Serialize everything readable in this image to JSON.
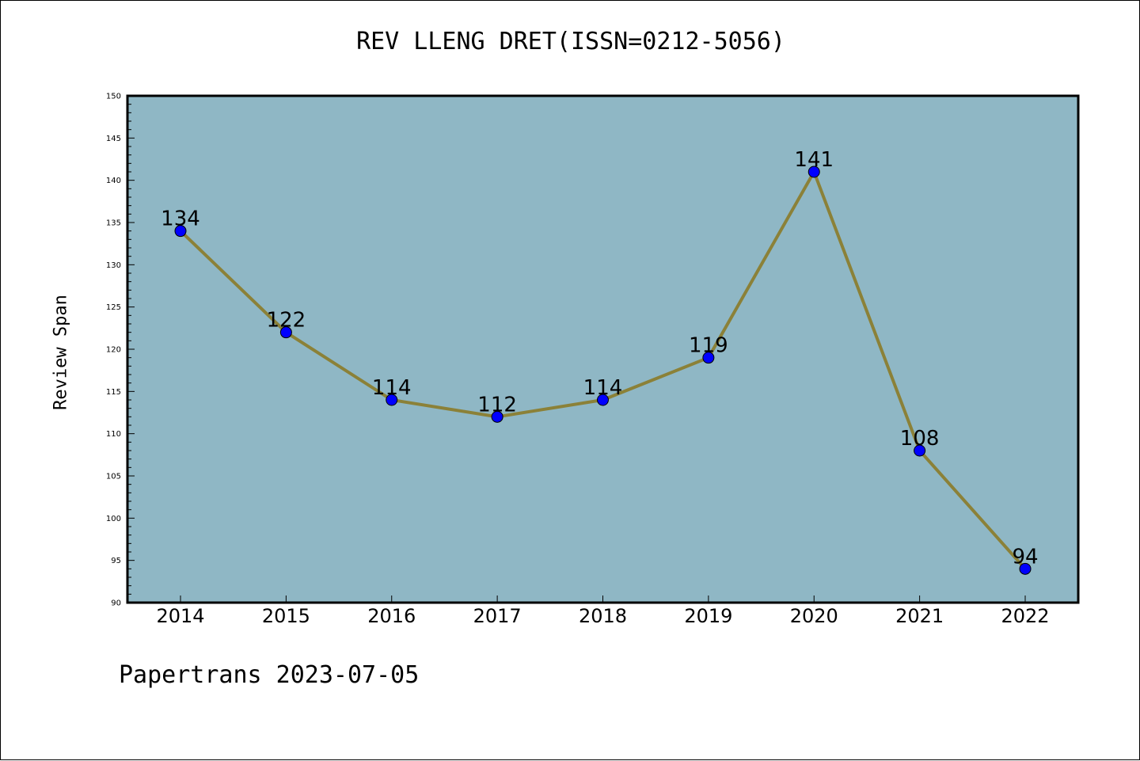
{
  "chart_data": {
    "type": "line",
    "title": "REV LLENG DRET(ISSN=0212-5056)",
    "xlabel": "",
    "ylabel": "Review Span",
    "categories": [
      "2014",
      "2015",
      "2016",
      "2017",
      "2018",
      "2019",
      "2020",
      "2021",
      "2022"
    ],
    "series": [
      {
        "values": [
          134,
          122,
          114,
          112,
          114,
          119,
          141,
          108,
          94
        ]
      }
    ],
    "ylim": [
      90,
      150
    ],
    "yticks": [
      90,
      95,
      100,
      105,
      110,
      115,
      120,
      125,
      130,
      135,
      140,
      145,
      150
    ],
    "grid": false,
    "colors": {
      "plot_background": "#8fb7c5",
      "line": "#8b8138",
      "marker": "#0000ff"
    }
  },
  "footer": "Papertrans 2023-07-05"
}
